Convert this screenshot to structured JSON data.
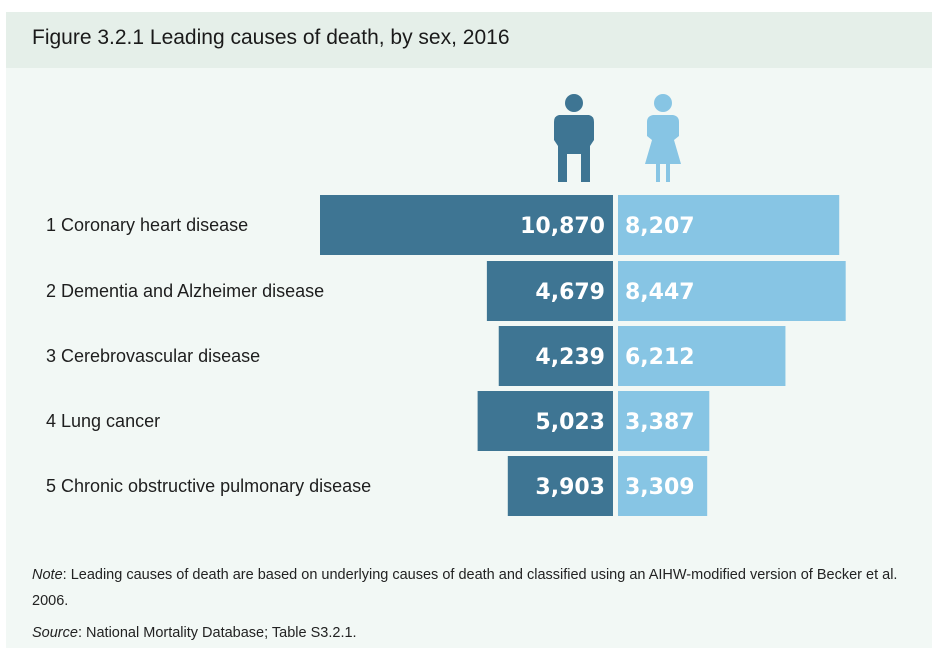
{
  "header": {
    "title": "Figure 3.2.1 Leading causes of death, by sex, 2016"
  },
  "colors": {
    "males": "#3e7593",
    "females": "#87c5e4",
    "background": "#f2f8f5",
    "title_bar": "#e5efe9"
  },
  "icons": {
    "left": "male-figure-icon",
    "right": "female-figure-icon"
  },
  "chart_data": {
    "type": "bar",
    "orientation": "horizontal-back-to-back",
    "categories": [
      "1  Coronary heart disease",
      "2  Dementia and Alzheimer disease",
      "3  Cerebrovascular disease",
      "4  Lung cancer",
      "5  Chronic obstructive pulmonary disease"
    ],
    "series": [
      {
        "values": [
          10870,
          4679,
          4239,
          5023,
          3903
        ],
        "labels": [
          "10,870",
          "4,679",
          "4,239",
          "5,023",
          "3,903"
        ]
      },
      {
        "values": [
          8207,
          8447,
          6212,
          3387,
          3309
        ],
        "labels": [
          "8,207",
          "8,447",
          "6,212",
          "3,387",
          "3,309"
        ]
      }
    ],
    "title": "Figure 3.2.1 Leading causes of death, by sex, 2016",
    "grid": false,
    "legend": "none"
  },
  "footer": {
    "note_label": "Note",
    "note_text": ": Leading causes of death are based on underlying causes of death and classified using an AIHW-modified version of Becker et al. 2006.",
    "source_label": "Source",
    "source_text": ": National Mortality Database; Table S3.2.1."
  }
}
